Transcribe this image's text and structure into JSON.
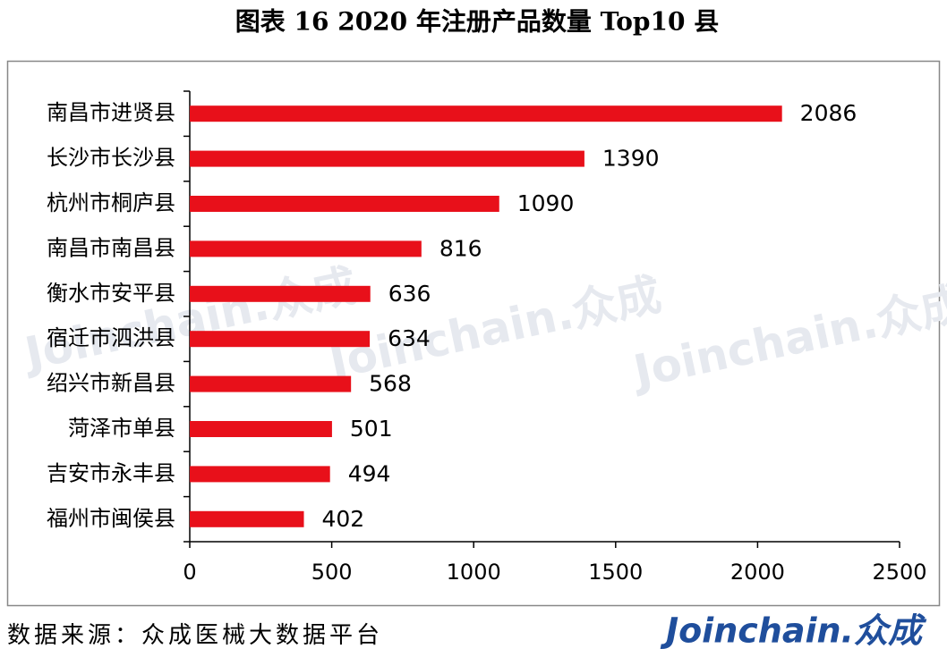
{
  "chart_data": {
    "type": "bar",
    "orientation": "horizontal",
    "title": "图表 16   2020 年注册产品数量 Top10 县",
    "categories": [
      "南昌市进贤县",
      "长沙市长沙县",
      "杭州市桐庐县",
      "南昌市南昌县",
      "衡水市安平县",
      "宿迁市泗洪县",
      "绍兴市新昌县",
      "菏泽市单县",
      "吉安市永丰县",
      "福州市闽侯县"
    ],
    "values": [
      2086,
      1390,
      1090,
      816,
      636,
      634,
      568,
      501,
      494,
      402
    ],
    "color": "#e8101a",
    "xlim": [
      0,
      2500
    ],
    "xticks": [
      0,
      500,
      1000,
      1500,
      2000,
      2500
    ],
    "grid": false,
    "watermark": "Joinchain.众成",
    "source": "数据来源：众成医械大数据平台",
    "logo": "Joinchain.众成"
  }
}
